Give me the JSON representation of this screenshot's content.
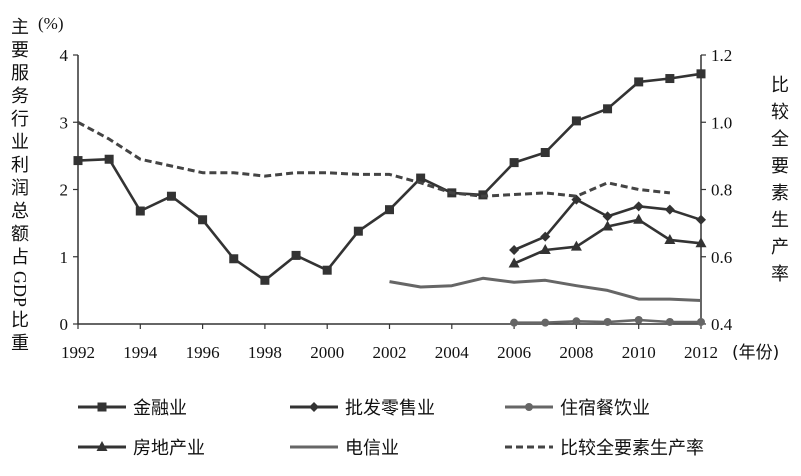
{
  "chart_data": {
    "type": "line",
    "title": "",
    "xlabel": "(年份)",
    "ylabel_left": "主要服务行业利润总额占GDP比重",
    "ylabel_left_unit": "(%)",
    "ylabel_right": "比较全要素生产率",
    "xlim": [
      1992,
      2012
    ],
    "ylim_left": [
      0,
      4
    ],
    "ylim_right": [
      0.4,
      1.2
    ],
    "x_ticks": [
      "1992",
      "1994",
      "1996",
      "1998",
      "2000",
      "2002",
      "2004",
      "2006",
      "2008",
      "2010",
      "2012"
    ],
    "y_left_ticks": [
      "0",
      "1",
      "2",
      "3",
      "4"
    ],
    "y_right_ticks": [
      "0.4",
      "0.6",
      "0.8",
      "1.0",
      "1.2"
    ],
    "grid": false,
    "legend_placement": "bottom",
    "series": [
      {
        "name": "金融业",
        "axis": "left",
        "marker": "square",
        "style": "solid",
        "color": "#333333",
        "x": [
          1992,
          1993,
          1994,
          1995,
          1996,
          1997,
          1998,
          1999,
          2000,
          2001,
          2002,
          2003,
          2004,
          2005,
          2006,
          2007,
          2008,
          2009,
          2010,
          2011,
          2012
        ],
        "values": [
          2.43,
          2.45,
          1.68,
          1.9,
          1.55,
          0.97,
          0.65,
          1.02,
          0.8,
          1.38,
          1.7,
          2.17,
          1.95,
          1.92,
          2.4,
          2.55,
          3.02,
          3.2,
          3.6,
          3.65,
          3.72
        ]
      },
      {
        "name": "批发零售业",
        "axis": "left",
        "marker": "diamond",
        "style": "solid",
        "color": "#333333",
        "x": [
          2006,
          2007,
          2008,
          2009,
          2010,
          2011,
          2012
        ],
        "values": [
          1.1,
          1.3,
          1.85,
          1.6,
          1.75,
          1.7,
          1.55
        ]
      },
      {
        "name": "住宿餐饮业",
        "axis": "left",
        "marker": "circle",
        "style": "solid",
        "color": "#666666",
        "x": [
          2006,
          2007,
          2008,
          2009,
          2010,
          2011,
          2012
        ],
        "values": [
          0.02,
          0.02,
          0.04,
          0.03,
          0.06,
          0.03,
          0.03
        ]
      },
      {
        "name": "房地产业",
        "axis": "left",
        "marker": "triangle",
        "style": "solid",
        "color": "#333333",
        "x": [
          2006,
          2007,
          2008,
          2009,
          2010,
          2011,
          2012
        ],
        "values": [
          0.9,
          1.1,
          1.15,
          1.45,
          1.55,
          1.25,
          1.2
        ]
      },
      {
        "name": "电信业",
        "axis": "left",
        "marker": "none",
        "style": "solid",
        "color": "#666666",
        "x": [
          2002,
          2003,
          2004,
          2005,
          2006,
          2007,
          2008,
          2009,
          2010,
          2011,
          2012
        ],
        "values": [
          0.63,
          0.55,
          0.57,
          0.68,
          0.62,
          0.65,
          0.57,
          0.5,
          0.37,
          0.37,
          0.35
        ]
      },
      {
        "name": "比较全要素生产率",
        "axis": "right",
        "marker": "none",
        "style": "dashed",
        "color": "#444444",
        "x": [
          1992,
          1993,
          1994,
          1995,
          1996,
          1997,
          1998,
          1999,
          2000,
          2001,
          2002,
          2003,
          2004,
          2005,
          2006,
          2007,
          2008,
          2009,
          2010,
          2011
        ],
        "values": [
          1.0,
          0.95,
          0.89,
          0.87,
          0.85,
          0.85,
          0.84,
          0.85,
          0.85,
          0.845,
          0.845,
          0.82,
          0.79,
          0.78,
          0.785,
          0.79,
          0.78,
          0.82,
          0.8,
          0.79
        ]
      }
    ]
  }
}
